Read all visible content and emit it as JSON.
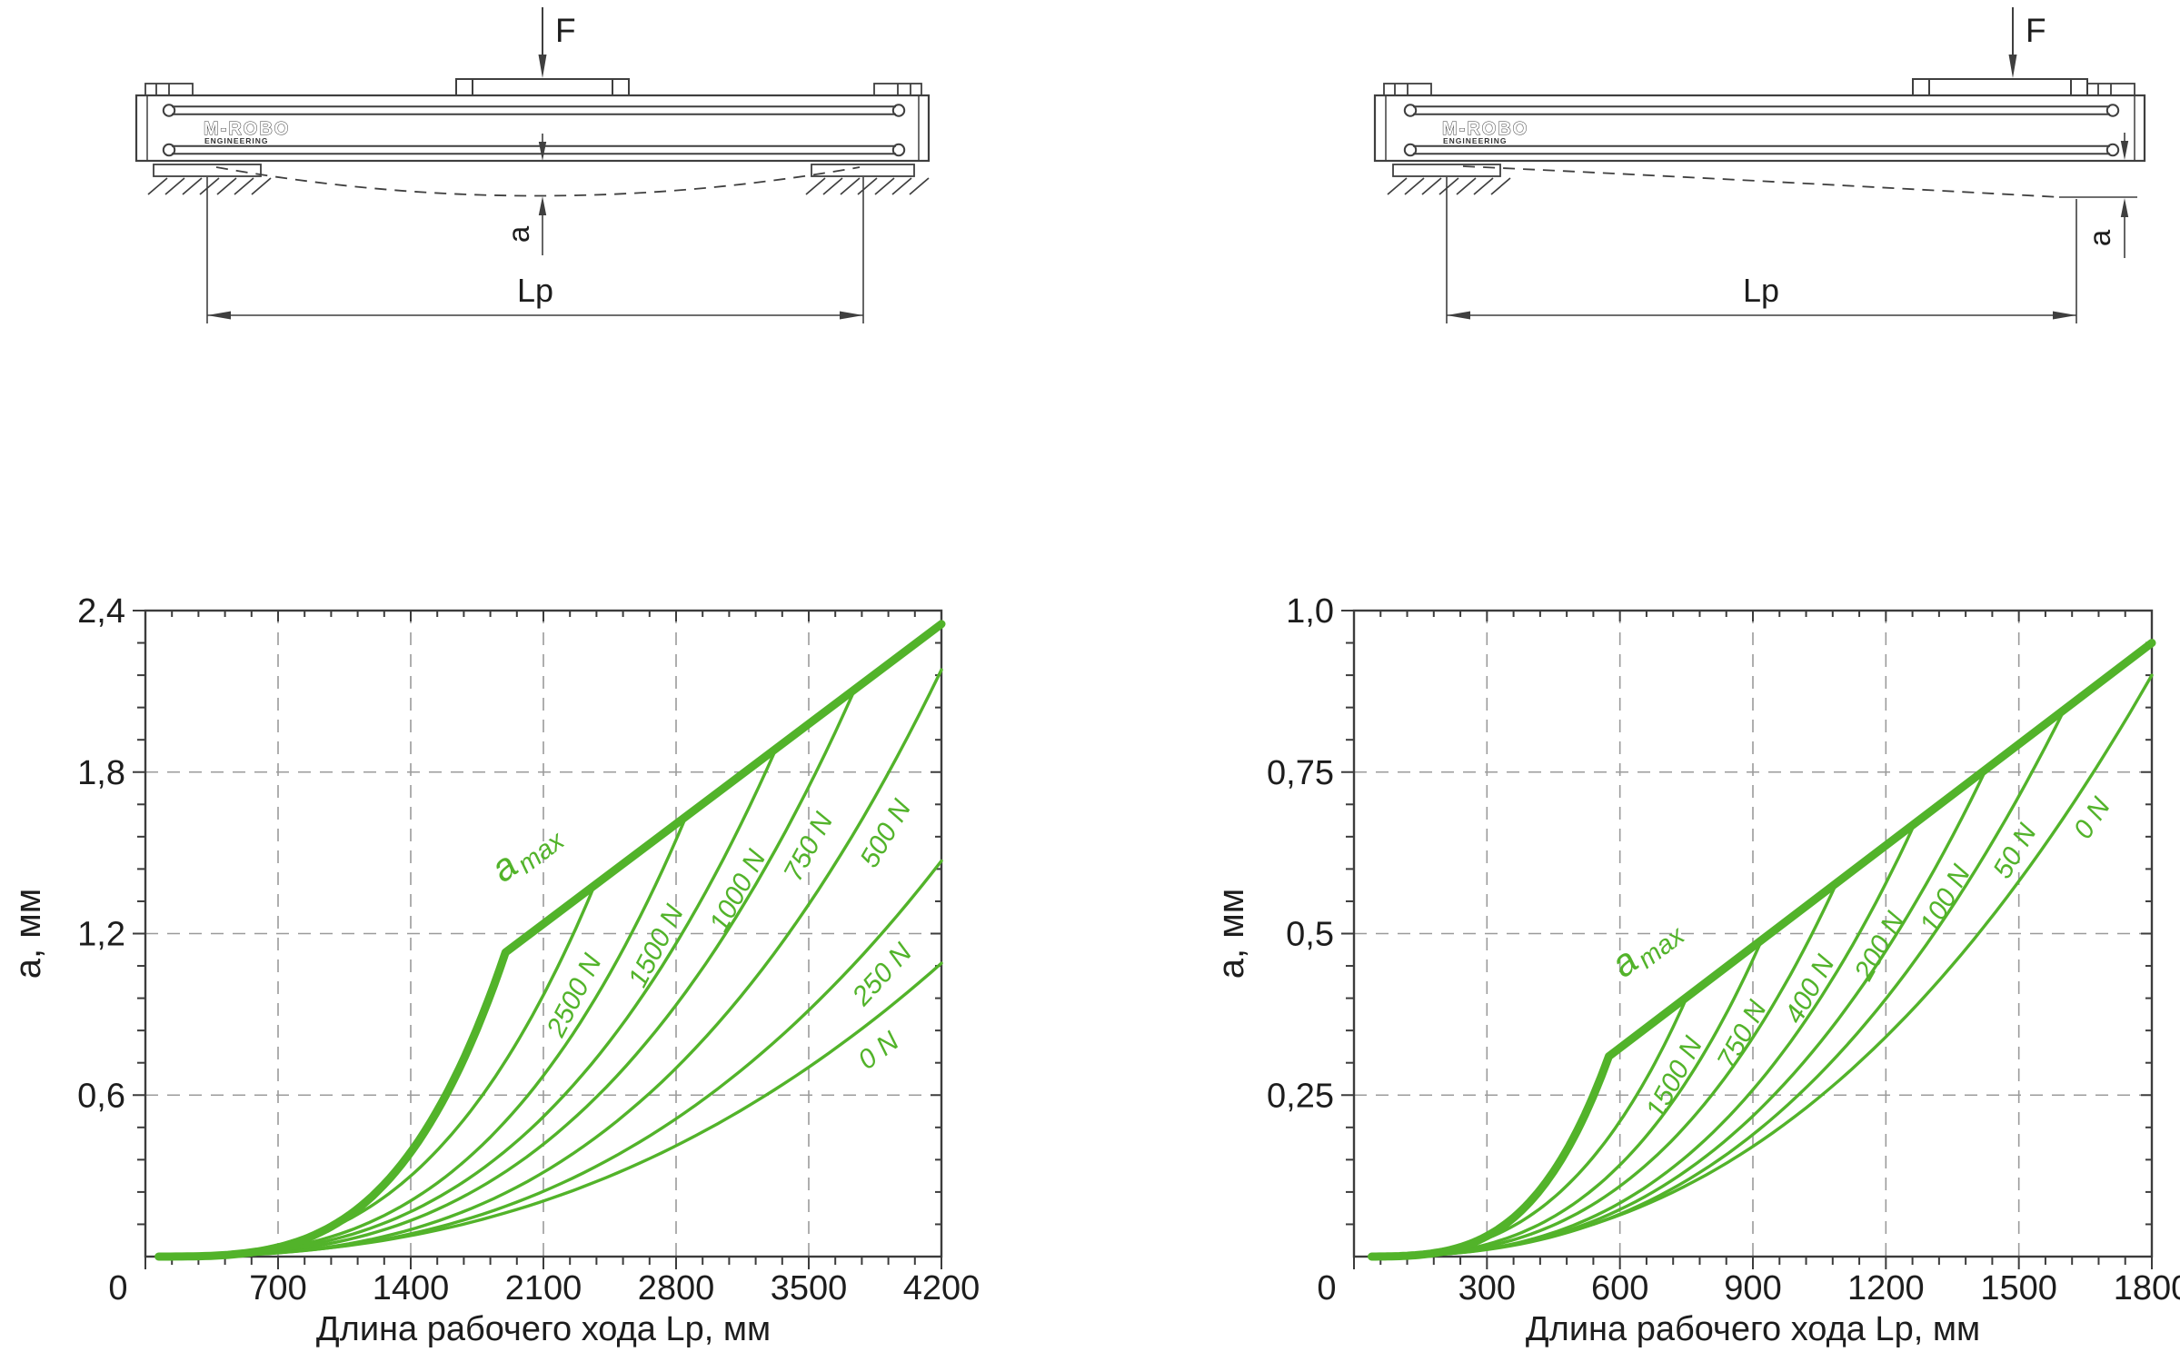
{
  "colors": {
    "accent_green": "#52b32a",
    "drawing_line": "#3f3f3f",
    "axis_line": "#3c3c3c",
    "grid_line": "#9b9b9b",
    "text": "#1d1d1d"
  },
  "drawings": {
    "left": {
      "name": "simply supported linear unit under center load",
      "force": "F",
      "deflection": "a",
      "stroke_length": "Lp",
      "logo_line1": "M-ROBO",
      "logo_line2": "ENGINEERING"
    },
    "right": {
      "name": "end-supported linear unit with load near free end",
      "force": "F",
      "deflection": "a",
      "stroke_length": "Lp",
      "logo_line1": "M-ROBO",
      "logo_line2": "ENGINEERING"
    }
  },
  "chart_data": [
    {
      "type": "line",
      "title": "",
      "xlabel": "Длина рабочего хода Lp, мм",
      "ylabel": "a, мм",
      "xlim": [
        0,
        4200
      ],
      "ylim": [
        0,
        2.4
      ],
      "grid": "dashed-major",
      "legend_position": "labels-on-curves",
      "x_ticks": [
        {
          "v": 0,
          "label": "0"
        },
        {
          "v": 700,
          "label": "700"
        },
        {
          "v": 1400,
          "label": "1400"
        },
        {
          "v": 2100,
          "label": "2100"
        },
        {
          "v": 2800,
          "label": "2800"
        },
        {
          "v": 3500,
          "label": "3500"
        },
        {
          "v": 4200,
          "label": "4200"
        }
      ],
      "y_ticks": [
        {
          "v": 0.6,
          "label": "0,6"
        },
        {
          "v": 1.2,
          "label": "1,2"
        },
        {
          "v": 1.8,
          "label": "1,8"
        },
        {
          "v": 2.4,
          "label": "2,4"
        }
      ],
      "x_minor_step": 140,
      "y_minor_step": 0.12,
      "envelope": {
        "label_main": "a",
        "label_sub": "max",
        "start_x": 70,
        "pre_exponent": 3.5,
        "kink": [
          1900,
          1.13
        ],
        "end": [
          4200,
          2.35
        ]
      },
      "series": [
        {
          "label": "2500 N",
          "end": [
            2370,
            1.38
          ],
          "exponent": 2.9
        },
        {
          "label": "1500 N",
          "end": [
            2850,
            1.63
          ],
          "exponent": 2.9
        },
        {
          "label": "1000 N",
          "end": [
            3330,
            1.89
          ],
          "exponent": 2.8
        },
        {
          "label": "750 N",
          "end": [
            3745,
            2.11
          ],
          "exponent": 2.8
        },
        {
          "label": "500 N",
          "end": [
            4200,
            2.18
          ],
          "exponent": 2.8
        },
        {
          "label": "250 N",
          "end": [
            4200,
            1.47
          ],
          "exponent": 2.6
        },
        {
          "label": "0 N",
          "end": [
            4200,
            1.09
          ],
          "exponent": 2.4
        }
      ]
    },
    {
      "type": "line",
      "title": "",
      "xlabel": "Длина рабочего хода Lp, мм",
      "ylabel": "a, мм",
      "xlim": [
        0,
        1800
      ],
      "ylim": [
        0,
        1.0
      ],
      "grid": "dashed-major",
      "legend_position": "labels-on-curves",
      "x_ticks": [
        {
          "v": 0,
          "label": "0"
        },
        {
          "v": 300,
          "label": "300"
        },
        {
          "v": 600,
          "label": "600"
        },
        {
          "v": 900,
          "label": "900"
        },
        {
          "v": 1200,
          "label": "1200"
        },
        {
          "v": 1500,
          "label": "1500"
        },
        {
          "v": 1800,
          "label": "1800"
        }
      ],
      "y_ticks": [
        {
          "v": 0.25,
          "label": "0,25"
        },
        {
          "v": 0.5,
          "label": "0,5"
        },
        {
          "v": 0.75,
          "label": "0,75"
        },
        {
          "v": 1.0,
          "label": "1,0"
        }
      ],
      "x_minor_step": 60,
      "y_minor_step": 0.05,
      "envelope": {
        "label_main": "a",
        "label_sub": "max",
        "start_x": 40,
        "pre_exponent": 3.5,
        "kink": [
          575,
          0.31
        ],
        "end": [
          1800,
          0.95
        ]
      },
      "series": [
        {
          "label": "1500 N",
          "end": [
            750,
            0.4
          ],
          "exponent": 2.9
        },
        {
          "label": "750 N",
          "end": [
            920,
            0.49
          ],
          "exponent": 2.9
        },
        {
          "label": "400 N",
          "end": [
            1090,
            0.58
          ],
          "exponent": 2.8
        },
        {
          "label": "200 N",
          "end": [
            1265,
            0.67
          ],
          "exponent": 2.8
        },
        {
          "label": "100 N",
          "end": [
            1430,
            0.76
          ],
          "exponent": 2.7
        },
        {
          "label": "50 N",
          "end": [
            1605,
            0.85
          ],
          "exponent": 2.6
        },
        {
          "label": "0 N",
          "end": [
            1800,
            0.9
          ],
          "exponent": 2.4
        }
      ]
    }
  ]
}
